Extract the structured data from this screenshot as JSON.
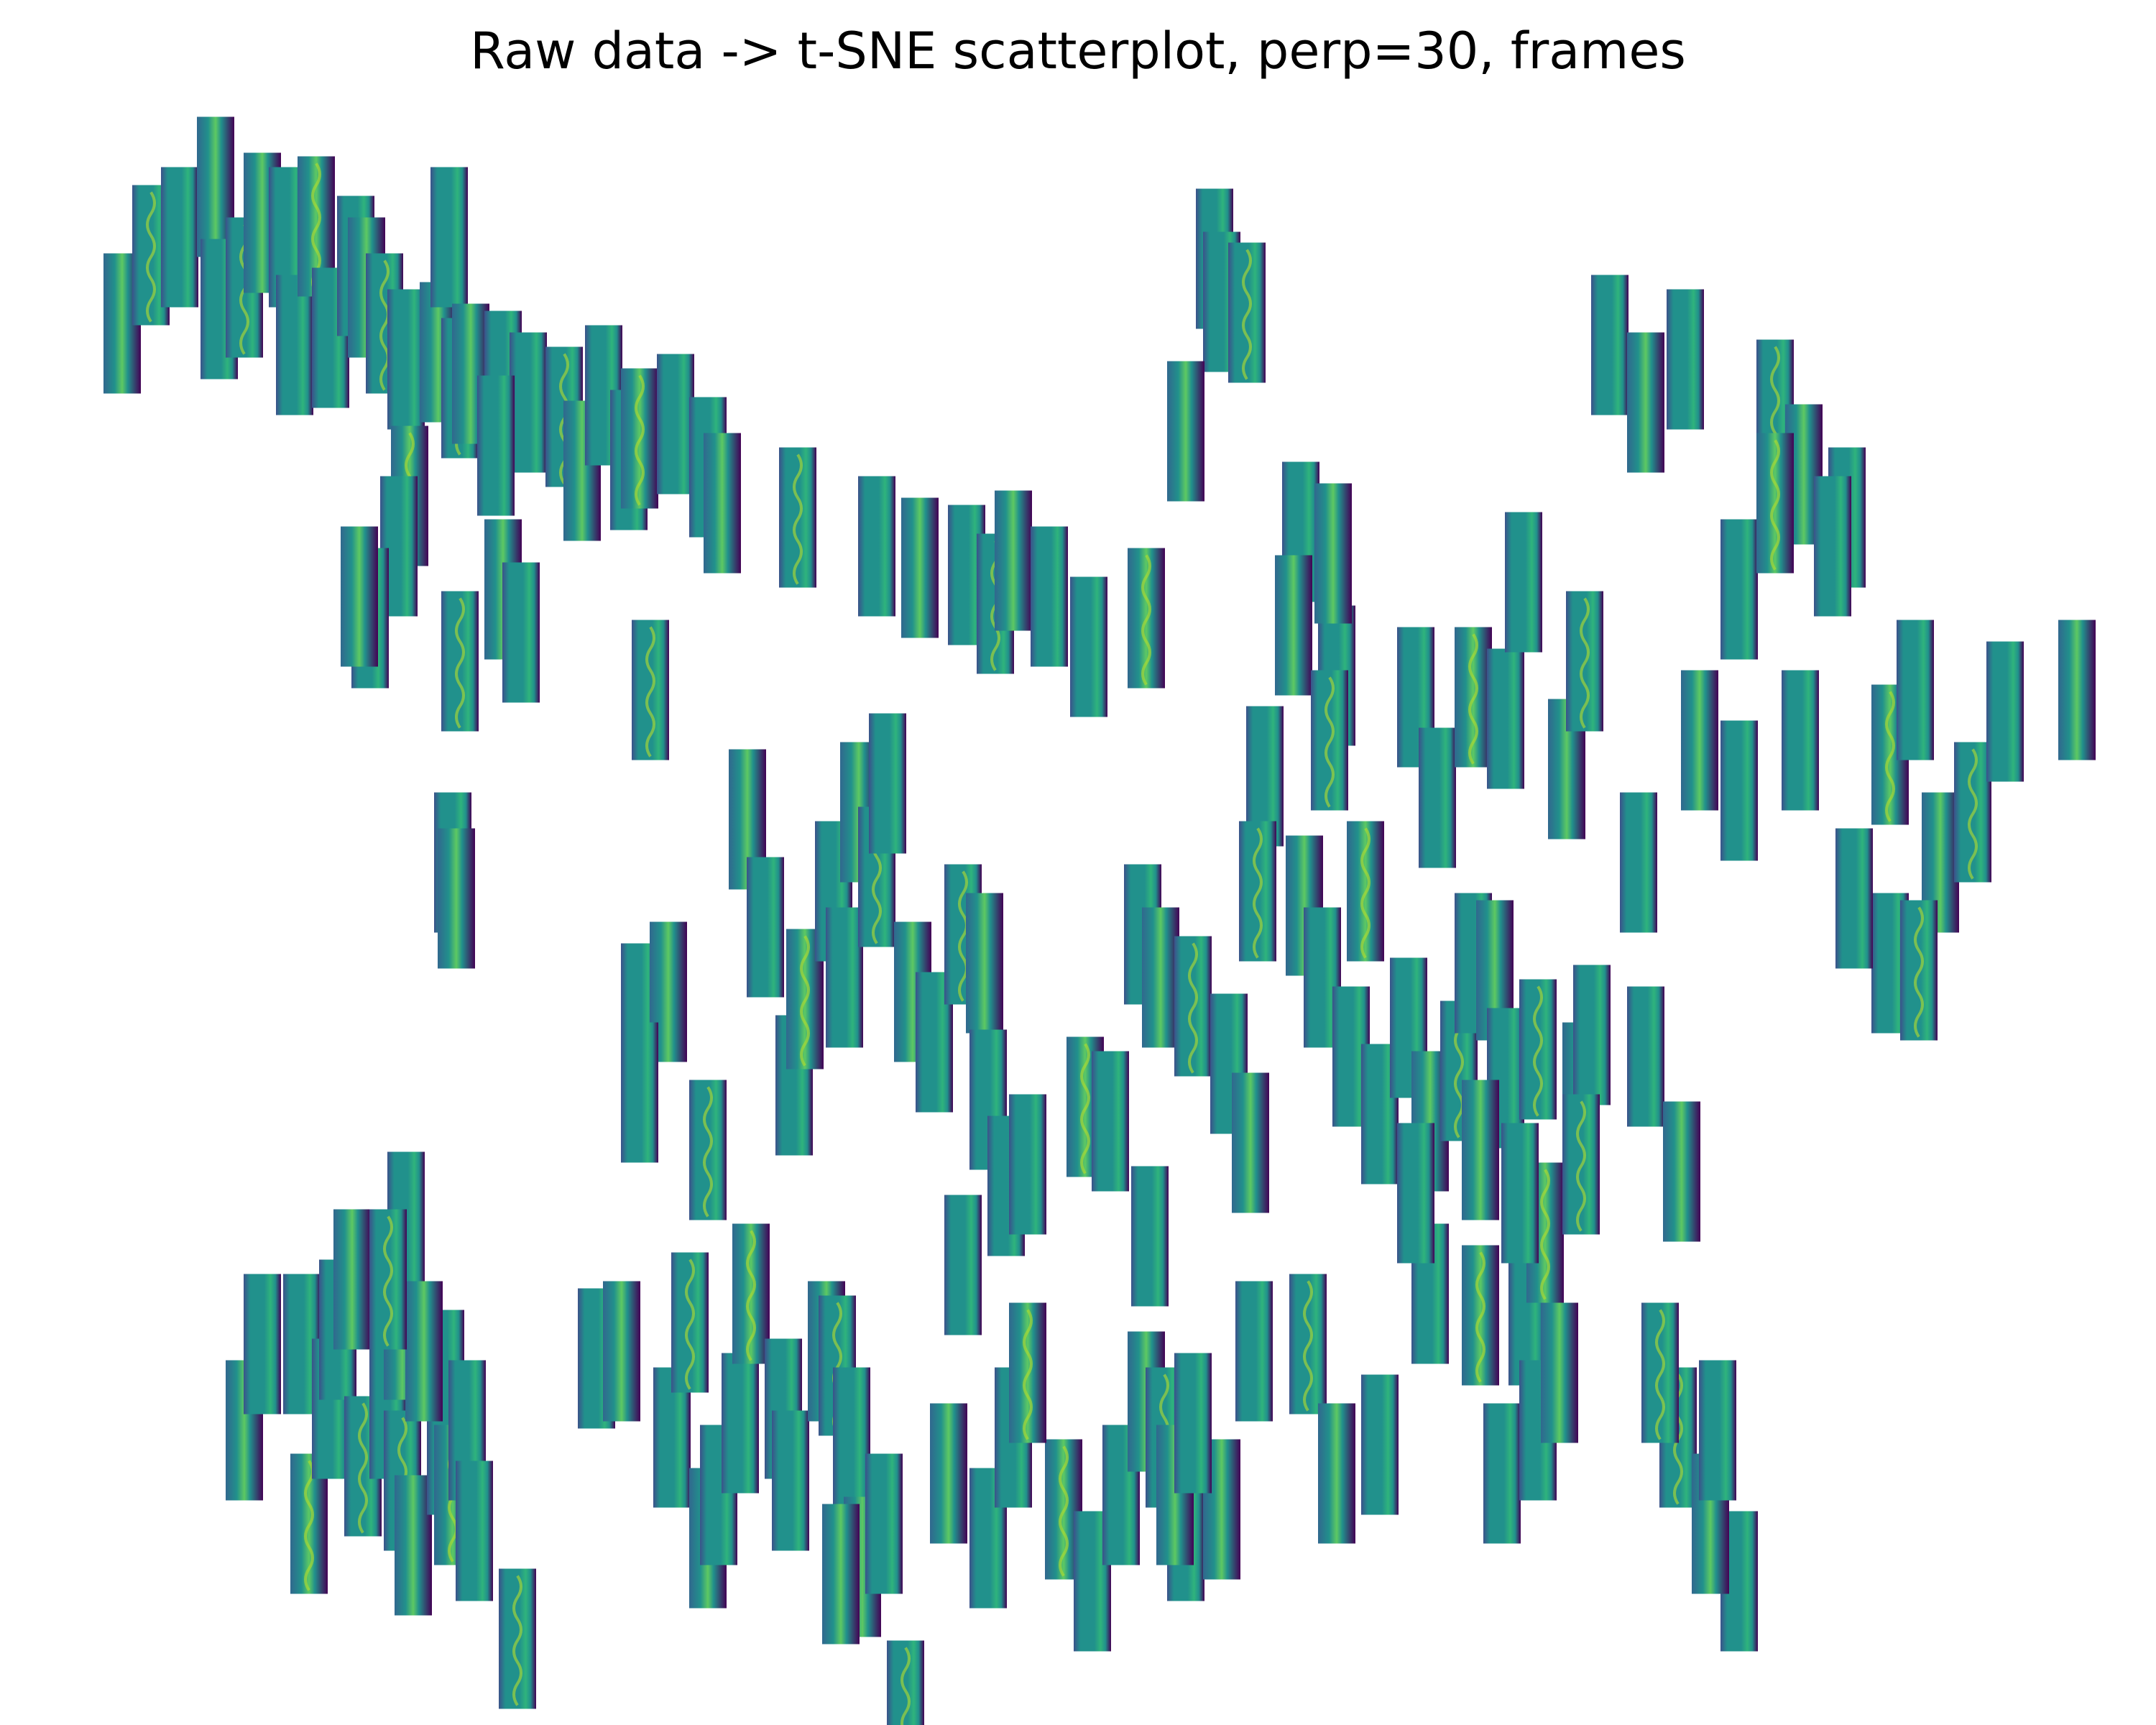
{
  "chart_data": {
    "type": "scatter",
    "title": "Raw data -> t-SNE scatterplot, perp=30, frames",
    "marker": "frame-thumbnail",
    "axes_visible": false,
    "grid": false,
    "legend": "none",
    "colormap": [
      "#440154",
      "#3b528b",
      "#21918c",
      "#5ec962",
      "#fde725"
    ],
    "points": [
      [
        170,
        450
      ],
      [
        210,
        355
      ],
      [
        250,
        330
      ],
      [
        300,
        260
      ],
      [
        305,
        430
      ],
      [
        340,
        400
      ],
      [
        365,
        310
      ],
      [
        400,
        330
      ],
      [
        410,
        480
      ],
      [
        440,
        315
      ],
      [
        460,
        470
      ],
      [
        495,
        370
      ],
      [
        510,
        400
      ],
      [
        535,
        450
      ],
      [
        565,
        500
      ],
      [
        610,
        490
      ],
      [
        625,
        330
      ],
      [
        640,
        540
      ],
      [
        655,
        520
      ],
      [
        700,
        530
      ],
      [
        735,
        560
      ],
      [
        570,
        690
      ],
      [
        555,
        760
      ],
      [
        515,
        860
      ],
      [
        500,
        830
      ],
      [
        640,
        920
      ],
      [
        690,
        620
      ],
      [
        700,
        820
      ],
      [
        725,
        880
      ],
      [
        785,
        580
      ],
      [
        810,
        655
      ],
      [
        840,
        550
      ],
      [
        875,
        640
      ],
      [
        890,
        610
      ],
      [
        940,
        590
      ],
      [
        985,
        650
      ],
      [
        1005,
        700
      ],
      [
        1110,
        720
      ],
      [
        1220,
        760
      ],
      [
        1280,
        790
      ],
      [
        1345,
        800
      ],
      [
        1385,
        840
      ],
      [
        1410,
        780
      ],
      [
        1460,
        830
      ],
      [
        1515,
        900
      ],
      [
        1595,
        860
      ],
      [
        1690,
        360
      ],
      [
        1700,
        420
      ],
      [
        1650,
        600
      ],
      [
        1735,
        435
      ],
      [
        1810,
        740
      ],
      [
        1800,
        870
      ],
      [
        1860,
        940
      ],
      [
        1850,
        1030
      ],
      [
        1855,
        770
      ],
      [
        1970,
        970
      ],
      [
        2000,
        1110
      ],
      [
        2050,
        970
      ],
      [
        2095,
        1000
      ],
      [
        2120,
        810
      ],
      [
        2180,
        1070
      ],
      [
        2205,
        920
      ],
      [
        2240,
        480
      ],
      [
        2290,
        560
      ],
      [
        2345,
        500
      ],
      [
        2470,
        570
      ],
      [
        2510,
        660
      ],
      [
        2505,
        1030
      ],
      [
        2570,
        720
      ],
      [
        2630,
        1050
      ],
      [
        2630,
        1340
      ],
      [
        2665,
        960
      ],
      [
        2700,
        1200
      ],
      [
        2745,
        1130
      ],
      [
        2790,
        990
      ],
      [
        2890,
        960
      ],
      [
        2580,
        1250
      ],
      [
        2670,
        1350
      ],
      [
        2365,
        1030
      ],
      [
        2420,
        1100
      ],
      [
        2420,
        820
      ],
      [
        2470,
        700
      ],
      [
        2550,
        760
      ],
      [
        630,
        1200
      ],
      [
        635,
        1250
      ],
      [
        905,
        960
      ],
      [
        890,
        1410
      ],
      [
        930,
        1380
      ],
      [
        890,
        1520
      ],
      [
        985,
        1600
      ],
      [
        1040,
        1140
      ],
      [
        1065,
        1290
      ],
      [
        1105,
        1510
      ],
      [
        1120,
        1390
      ],
      [
        1160,
        1240
      ],
      [
        1175,
        1360
      ],
      [
        1195,
        1130
      ],
      [
        1220,
        1220
      ],
      [
        1235,
        1090
      ],
      [
        1270,
        1380
      ],
      [
        1300,
        1450
      ],
      [
        1340,
        1300
      ],
      [
        1370,
        1340
      ],
      [
        1375,
        1530
      ],
      [
        1400,
        1650
      ],
      [
        1510,
        1540
      ],
      [
        1545,
        1560
      ],
      [
        1590,
        1300
      ],
      [
        1615,
        1360
      ],
      [
        1660,
        1400
      ],
      [
        1710,
        1480
      ],
      [
        1740,
        1590
      ],
      [
        1760,
        1080
      ],
      [
        1750,
        1240
      ],
      [
        1815,
        1260
      ],
      [
        1840,
        1360
      ],
      [
        1880,
        1470
      ],
      [
        1900,
        1240
      ],
      [
        1920,
        1550
      ],
      [
        1960,
        1430
      ],
      [
        1990,
        1560
      ],
      [
        2030,
        1490
      ],
      [
        2050,
        1340
      ],
      [
        2080,
        1350
      ],
      [
        2095,
        1500
      ],
      [
        2140,
        1460
      ],
      [
        2200,
        1520
      ],
      [
        2215,
        1440
      ],
      [
        2125,
        1830
      ],
      [
        2150,
        1715
      ],
      [
        2115,
        1660
      ],
      [
        2290,
        1470
      ],
      [
        2340,
        1630
      ],
      [
        2335,
        2000
      ],
      [
        2420,
        2200
      ],
      [
        2380,
        2120
      ],
      [
        2280,
        1200
      ],
      [
        2200,
        1620
      ],
      [
        340,
        1990
      ],
      [
        365,
        1870
      ],
      [
        420,
        1870
      ],
      [
        430,
        2120
      ],
      [
        460,
        1960
      ],
      [
        470,
        1850
      ],
      [
        490,
        1780
      ],
      [
        505,
        2040
      ],
      [
        540,
        1960
      ],
      [
        560,
        1850
      ],
      [
        565,
        1700
      ],
      [
        560,
        2060
      ],
      [
        575,
        2150
      ],
      [
        620,
        1920
      ],
      [
        620,
        2010
      ],
      [
        630,
        2080
      ],
      [
        650,
        1990
      ],
      [
        660,
        2130
      ],
      [
        590,
        1880
      ],
      [
        540,
        1780
      ],
      [
        830,
        1890
      ],
      [
        865,
        1880
      ],
      [
        935,
        2000
      ],
      [
        960,
        1840
      ],
      [
        985,
        2140
      ],
      [
        1000,
        2080
      ],
      [
        1030,
        1980
      ],
      [
        1045,
        1800
      ],
      [
        1090,
        1960
      ],
      [
        1100,
        2060
      ],
      [
        1150,
        1880
      ],
      [
        1165,
        1900
      ],
      [
        1185,
        2000
      ],
      [
        1200,
        2180
      ],
      [
        1230,
        2120
      ],
      [
        1260,
        2380
      ],
      [
        1320,
        2050
      ],
      [
        1375,
        2140
      ],
      [
        1410,
        2000
      ],
      [
        1480,
        2100
      ],
      [
        1520,
        2200
      ],
      [
        1560,
        2080
      ],
      [
        1595,
        1950
      ],
      [
        1620,
        2000
      ],
      [
        1650,
        2130
      ],
      [
        1700,
        2100
      ],
      [
        1745,
        1880
      ],
      [
        1820,
        1870
      ],
      [
        1860,
        2050
      ],
      [
        1920,
        2010
      ],
      [
        1990,
        1800
      ],
      [
        2060,
        1830
      ],
      [
        2090,
        2050
      ],
      [
        2140,
        1990
      ],
      [
        2170,
        1910
      ],
      [
        2310,
        1910
      ],
      [
        2390,
        1990
      ],
      [
        1635,
        2080
      ],
      [
        1660,
        1980
      ],
      [
        720,
        2280
      ],
      [
        1170,
        2190
      ],
      [
        1340,
        1760
      ],
      [
        1430,
        1620
      ],
      [
        1430,
        1910
      ],
      [
        1600,
        1720
      ],
      [
        1970,
        1660
      ],
      [
        2060,
        1600
      ]
    ]
  }
}
